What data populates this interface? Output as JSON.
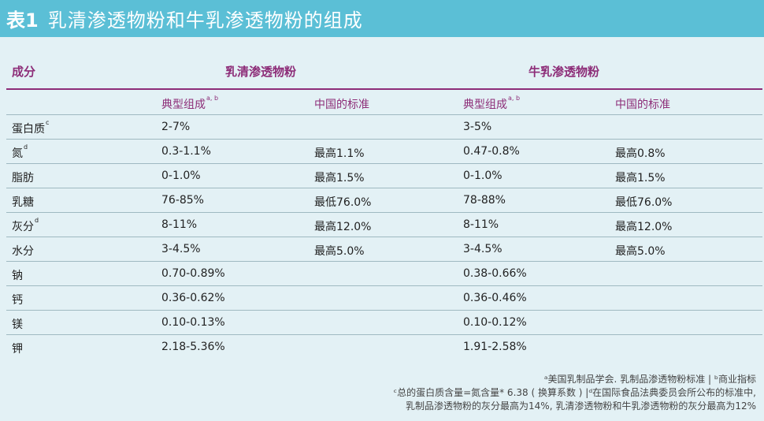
{
  "title": {
    "num": "表1",
    "text": "乳清渗透物粉和牛乳渗透物粉的组成"
  },
  "header": {
    "col0": "成分",
    "group1": "乳清渗透物粉",
    "group2": "牛乳渗透物粉",
    "typical": "典型组成",
    "typical_sup": "a, b",
    "standard": "中国的标准"
  },
  "rows": [
    {
      "name": "蛋白质",
      "sup": "c",
      "whey_typical": "2-7%",
      "whey_std": "",
      "milk_typical": "3-5%",
      "milk_std": ""
    },
    {
      "name": "氮",
      "sup": "d",
      "whey_typical": "0.3-1.1%",
      "whey_std": "最高1.1%",
      "milk_typical": "0.47-0.8%",
      "milk_std": "最高0.8%"
    },
    {
      "name": "脂肪",
      "sup": "",
      "whey_typical": "0-1.0%",
      "whey_std": "最高1.5%",
      "milk_typical": "0-1.0%",
      "milk_std": "最高1.5%"
    },
    {
      "name": "乳糖",
      "sup": "",
      "whey_typical": "76-85%",
      "whey_std": "最低76.0%",
      "milk_typical": "78-88%",
      "milk_std": "最低76.0%"
    },
    {
      "name": "灰分",
      "sup": "d",
      "whey_typical": "8-11%",
      "whey_std": "最高12.0%",
      "milk_typical": "8-11%",
      "milk_std": "最高12.0%"
    },
    {
      "name": "水分",
      "sup": "",
      "whey_typical": "3-4.5%",
      "whey_std": "最高5.0%",
      "milk_typical": "3-4.5%",
      "milk_std": "最高5.0%"
    },
    {
      "name": "钠",
      "sup": "",
      "whey_typical": "0.70-0.89%",
      "whey_std": "",
      "milk_typical": "0.38-0.66%",
      "milk_std": ""
    },
    {
      "name": "钙",
      "sup": "",
      "whey_typical": "0.36-0.62%",
      "whey_std": "",
      "milk_typical": "0.36-0.46%",
      "milk_std": ""
    },
    {
      "name": "镁",
      "sup": "",
      "whey_typical": "0.10-0.13%",
      "whey_std": "",
      "milk_typical": "0.10-0.12%",
      "milk_std": ""
    },
    {
      "name": "钾",
      "sup": "",
      "whey_typical": "2.18-5.36%",
      "whey_std": "",
      "milk_typical": "1.91-2.58%",
      "milk_std": ""
    }
  ],
  "footnotes": {
    "line1": "ᵃ美国乳制品学会. 乳制品渗透物粉标准 | ᵇ商业指标",
    "line2": "ᶜ总的蛋白质含量=氮含量* 6.38 ( 换算系数 ) |ᵈ在国际食品法典委员会所公布的标准中,",
    "line3": "乳制品渗透物粉的灰分最高为14%, 乳清渗透物粉和牛乳渗透物粉的灰分最高为12%"
  },
  "colors": {
    "title_bg": "#5bbfd6",
    "accent": "#8d2d78",
    "background": "#e3f1f5"
  }
}
